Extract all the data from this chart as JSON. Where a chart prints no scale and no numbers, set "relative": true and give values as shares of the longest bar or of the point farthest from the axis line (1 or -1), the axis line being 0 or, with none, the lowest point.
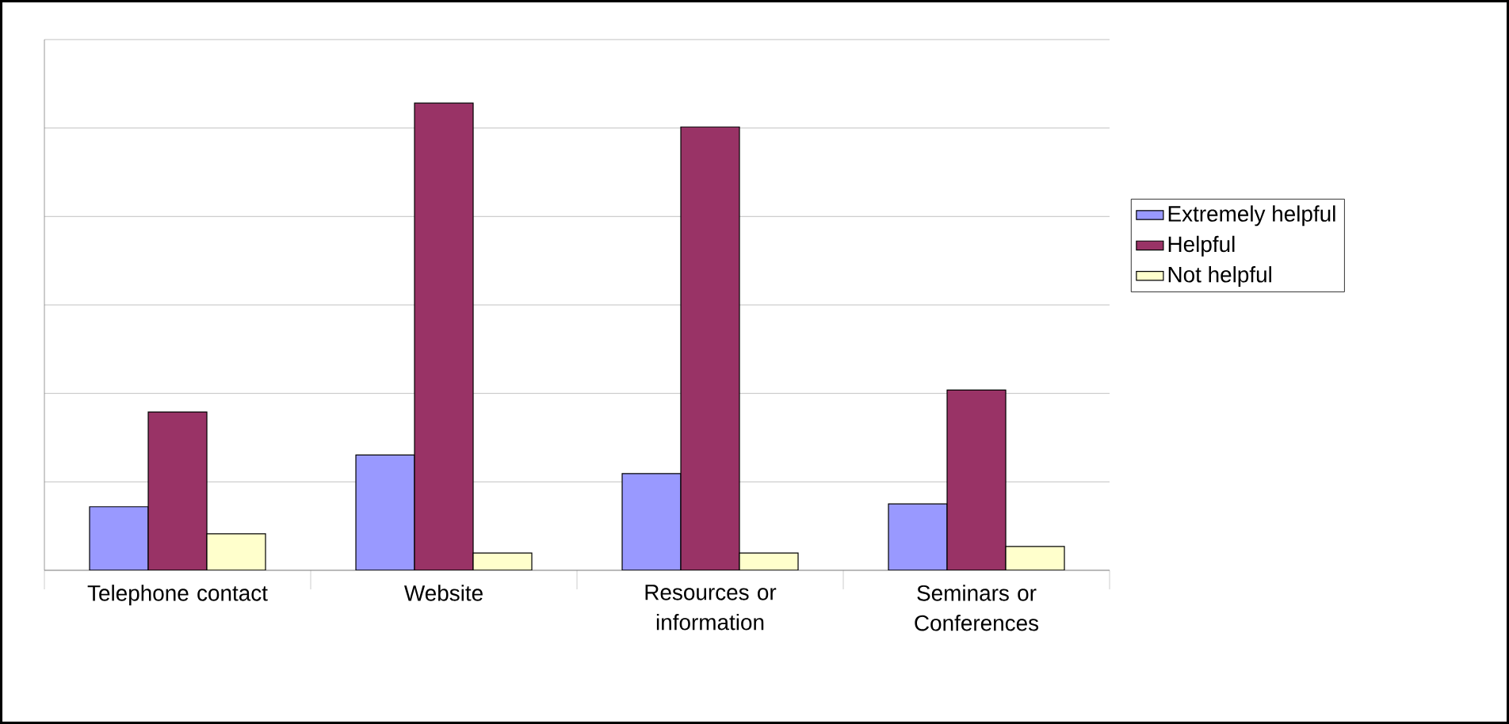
{
  "chart_data": {
    "type": "bar",
    "relative": true,
    "categories": [
      "Telephone contact",
      "Website",
      "Resources or information",
      "Seminars or Conferences"
    ],
    "series": [
      {
        "name": "Extremely helpful",
        "color": "#9999ff",
        "values": [
          0.136,
          0.247,
          0.207,
          0.142
        ]
      },
      {
        "name": "Helpful",
        "color": "#993366",
        "values": [
          0.339,
          1,
          0.949,
          0.386
        ]
      },
      {
        "name": "Not helpful",
        "color": "#ffffcc",
        "values": [
          0.078,
          0.037,
          0.037,
          0.051
        ]
      }
    ],
    "grid": "y",
    "legend": "right"
  }
}
